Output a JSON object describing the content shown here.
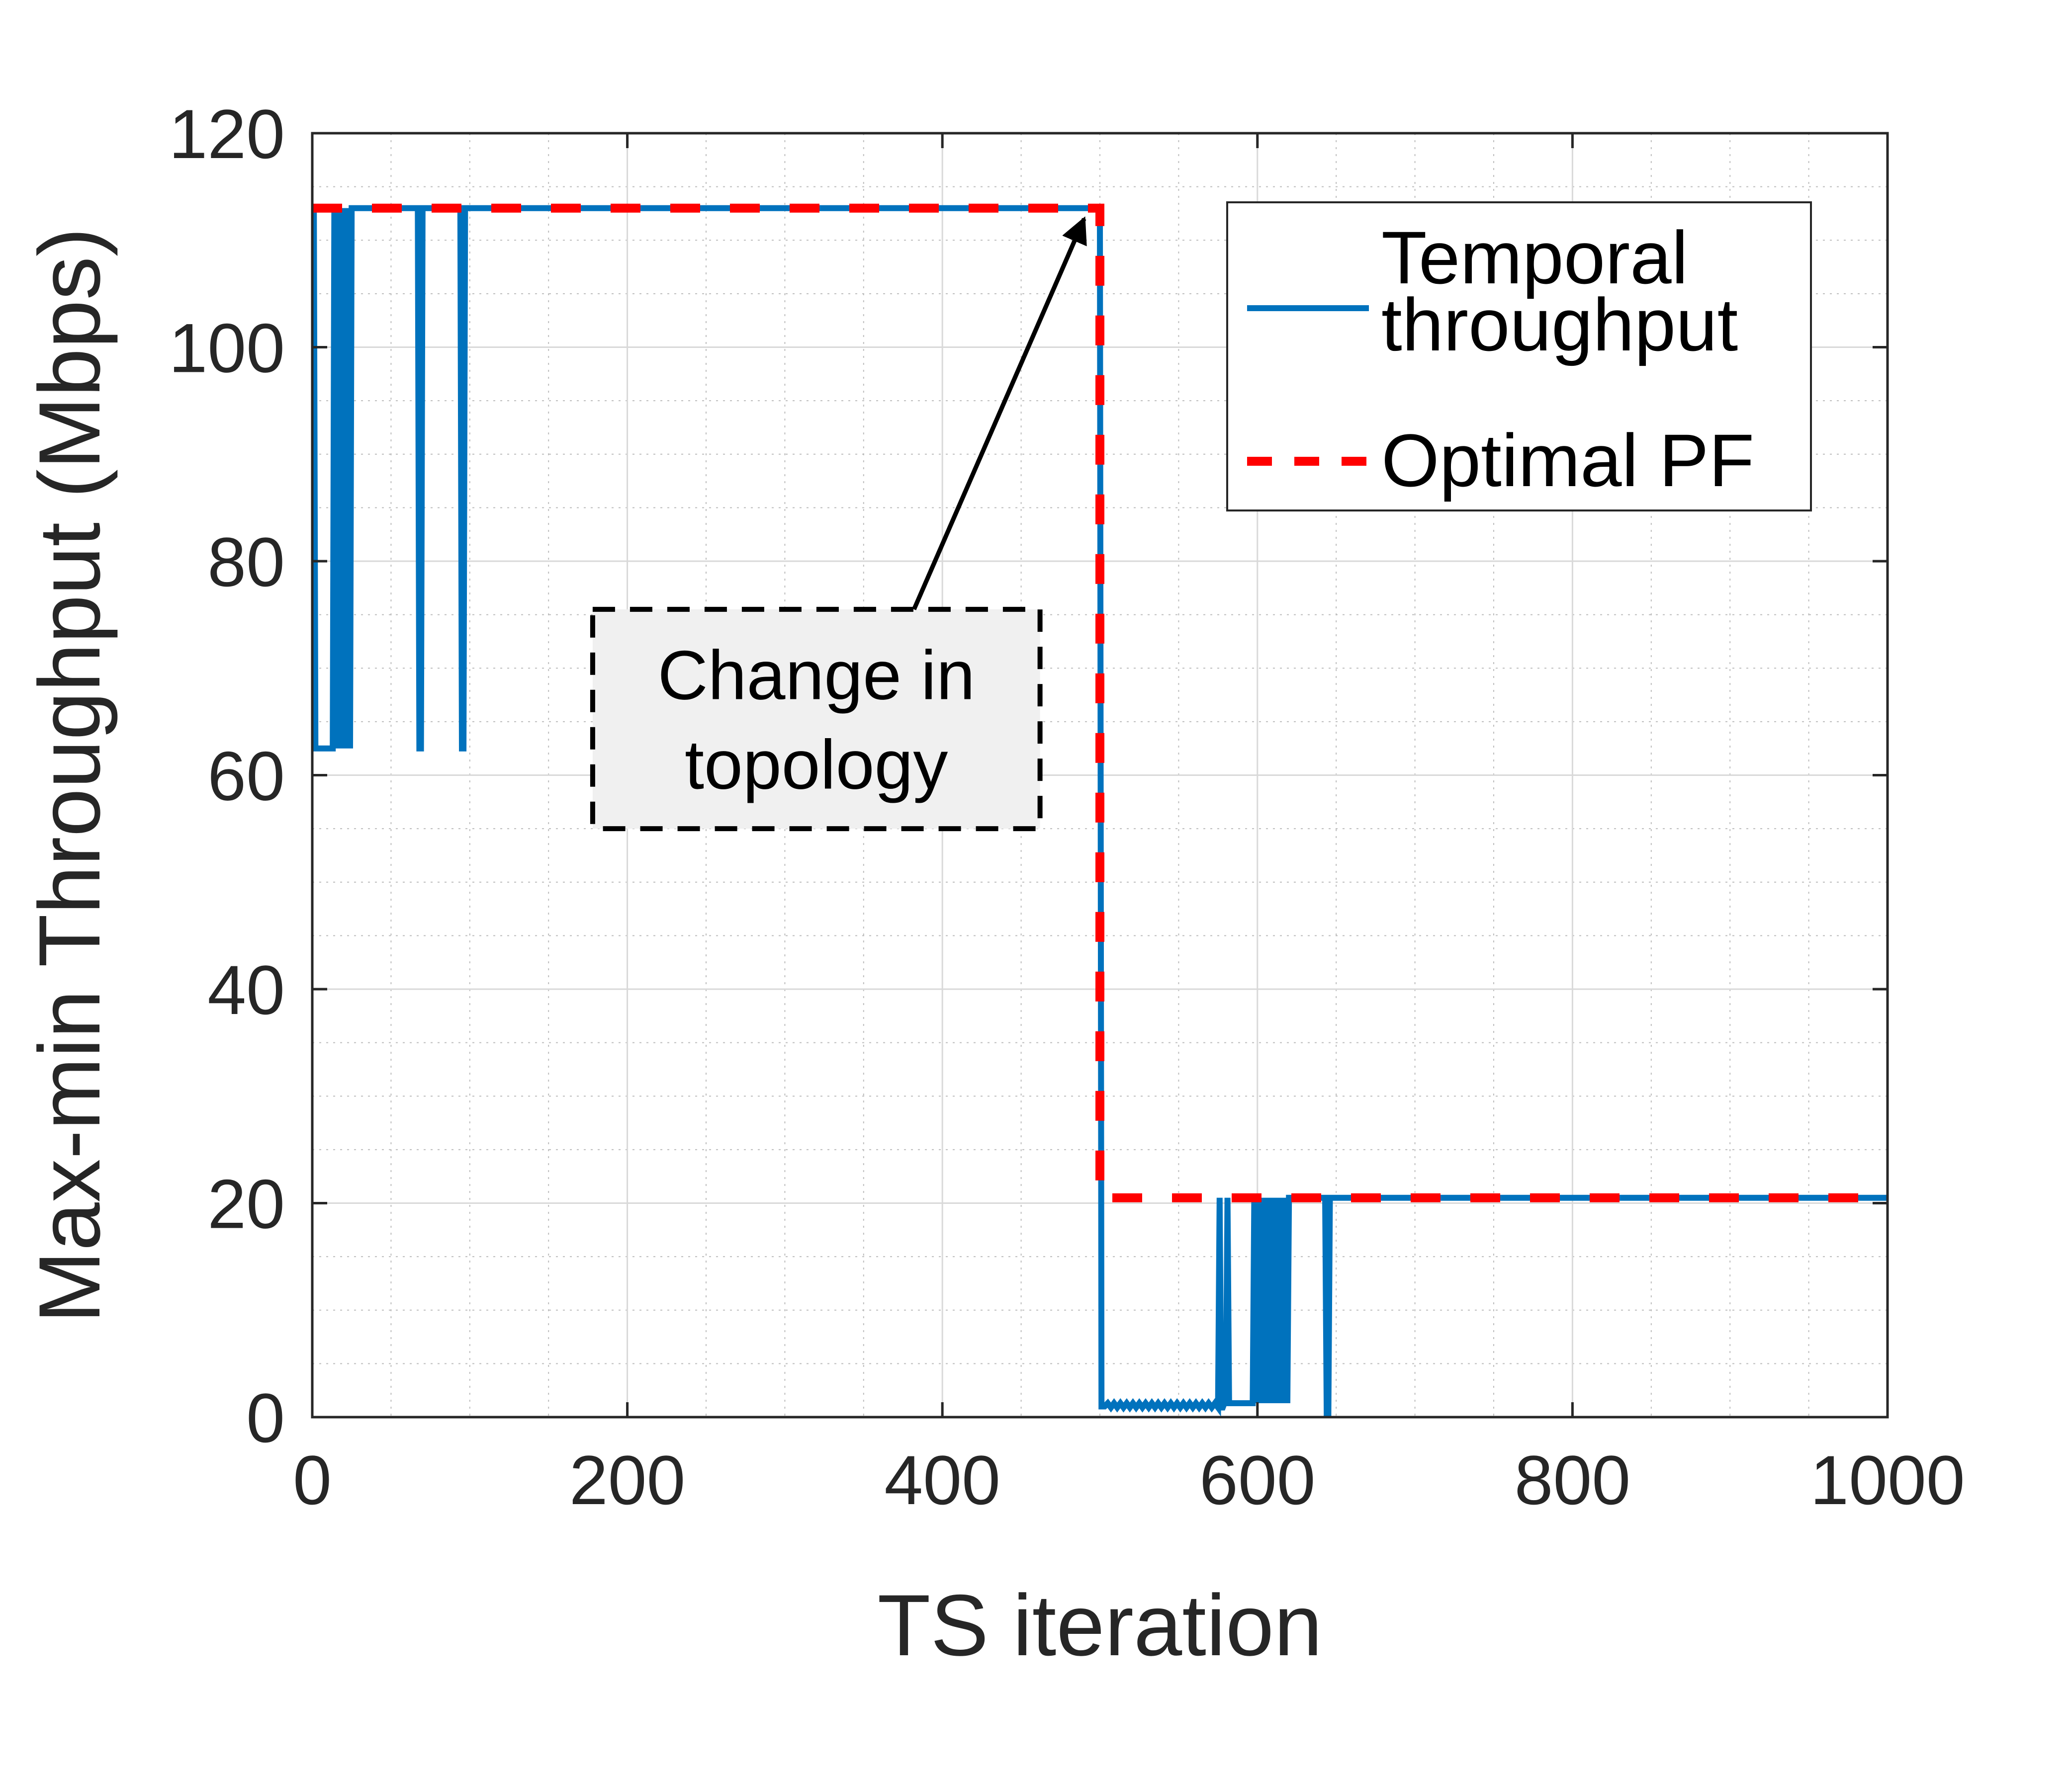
{
  "chart_data": {
    "type": "line",
    "xlabel": "TS iteration",
    "ylabel": "Max-min Throughput (Mbps)",
    "xlim": [
      0,
      1000
    ],
    "ylim": [
      0,
      120
    ],
    "x_ticks": [
      0,
      200,
      400,
      600,
      800,
      1000
    ],
    "y_ticks": [
      0,
      20,
      40,
      60,
      80,
      100,
      120
    ],
    "grid": true,
    "minor_grid": true,
    "legend_position": "top-right",
    "series": [
      {
        "name": "Temporal throughput",
        "color": "#0072BD",
        "style": "solid",
        "x": [
          0,
          1,
          2,
          3,
          4,
          5,
          6,
          8,
          10,
          12,
          13,
          14,
          15,
          16,
          17,
          18,
          19,
          20,
          21,
          22,
          23,
          24,
          25,
          26,
          27,
          67,
          68,
          69,
          70,
          94,
          95,
          96,
          97,
          500,
          501,
          502,
          503,
          505,
          507,
          509,
          511,
          513,
          515,
          517,
          519,
          521,
          523,
          525,
          527,
          529,
          531,
          533,
          535,
          537,
          539,
          541,
          543,
          545,
          547,
          549,
          551,
          553,
          555,
          557,
          559,
          561,
          563,
          565,
          567,
          569,
          571,
          573,
          575,
          576,
          577,
          578,
          579,
          580,
          581,
          582,
          583,
          584,
          585,
          586,
          587,
          588,
          589,
          590,
          591,
          592,
          593,
          594,
          595,
          596,
          597,
          598,
          599,
          600,
          601,
          602,
          603,
          604,
          605,
          606,
          607,
          608,
          609,
          610,
          611,
          612,
          613,
          614,
          615,
          616,
          617,
          618,
          619,
          620,
          621,
          643,
          644,
          645,
          646,
          1000
        ],
        "y": [
          113,
          113,
          62.5,
          62.5,
          62.5,
          62.5,
          62.5,
          62.5,
          62.5,
          62.5,
          62.5,
          113,
          113,
          62.5,
          113,
          62.5,
          113,
          62.5,
          113,
          62.5,
          113,
          62.5,
          113,
          113,
          113,
          113,
          62.5,
          62.5,
          113,
          113,
          62.5,
          62.5,
          113,
          113,
          1,
          1,
          1,
          1.3,
          0.9,
          1.3,
          0.9,
          1.3,
          0.9,
          1.3,
          0.9,
          1.3,
          0.9,
          1.3,
          0.9,
          1.3,
          0.9,
          1.3,
          0.9,
          1.3,
          0.9,
          1.3,
          0.9,
          1.3,
          0.9,
          1.3,
          0.9,
          1.3,
          0.9,
          1.3,
          0.9,
          1.3,
          0.9,
          1.3,
          0.9,
          1.3,
          0.9,
          1.3,
          0.9,
          20.5,
          0.9,
          0.9,
          1.3,
          1.3,
          20.5,
          1.3,
          1.3,
          1.3,
          1.3,
          1.3,
          1.3,
          1.3,
          1.3,
          1.3,
          1.3,
          1.3,
          1.3,
          1.3,
          1.3,
          1.3,
          1.3,
          20.5,
          1.3,
          20.5,
          1.3,
          20.5,
          1.3,
          20.5,
          1.3,
          20.5,
          1.3,
          20.5,
          1.3,
          20.5,
          1.3,
          20.5,
          1.3,
          20.5,
          1.3,
          20.5,
          1.3,
          20.5,
          1.3,
          20.5,
          20.5,
          20.5,
          0,
          0,
          20.5,
          20.5
        ]
      },
      {
        "name": "Optimal PF",
        "color": "#FF0000",
        "style": "dashed",
        "x": [
          0,
          500,
          500,
          1000
        ],
        "y": [
          113,
          113,
          20.5,
          20.5
        ]
      }
    ],
    "legend": {
      "entries": [
        {
          "lines": [
            "Temporal",
            "throughput"
          ],
          "color": "#0072BD",
          "style": "solid"
        },
        {
          "lines": [
            "Optimal PF"
          ],
          "color": "#FF0000",
          "style": "dashed"
        }
      ]
    },
    "annotations": [
      {
        "lines": [
          "Change in",
          "topology"
        ],
        "box_x": [
          178,
          462
        ],
        "box_y": [
          55,
          75.5
        ],
        "arrow_from": [
          382,
          75.5
        ],
        "arrow_to": [
          490,
          112
        ]
      }
    ]
  }
}
